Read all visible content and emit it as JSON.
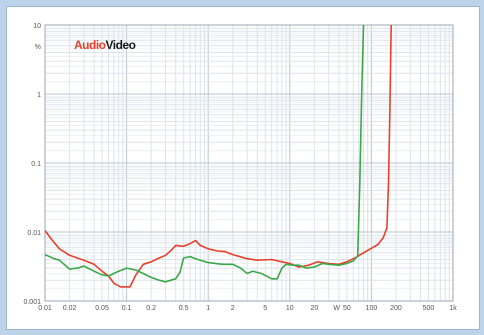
{
  "chart_data": {
    "type": "line",
    "x_scale": "log",
    "y_scale": "log",
    "xlim": [
      0.01,
      1000
    ],
    "ylim": [
      0.001,
      10
    ],
    "grid": true,
    "x_tick_labels": [
      {
        "value": 0.01,
        "label": "0.01"
      },
      {
        "value": 0.02,
        "label": "0.02"
      },
      {
        "value": 0.05,
        "label": "0.05"
      },
      {
        "value": 0.1,
        "label": "0.1"
      },
      {
        "value": 0.2,
        "label": "0.2"
      },
      {
        "value": 0.5,
        "label": "0.5"
      },
      {
        "value": 1,
        "label": "1"
      },
      {
        "value": 2,
        "label": "2"
      },
      {
        "value": 5,
        "label": "5"
      },
      {
        "value": 10,
        "label": "10"
      },
      {
        "value": 20,
        "label": "20"
      },
      {
        "value": 50,
        "label": "50"
      },
      {
        "value": 100,
        "label": "100"
      },
      {
        "value": 200,
        "label": "200"
      },
      {
        "value": 500,
        "label": "500"
      },
      {
        "value": 1000,
        "label": "1k"
      }
    ],
    "x_unit_label": {
      "value": 30,
      "label": "W"
    },
    "y_tick_labels": [
      {
        "value": 10,
        "label": "10"
      },
      {
        "value": 1,
        "label": "1"
      },
      {
        "value": 0.1,
        "label": "0.1"
      },
      {
        "value": 0.01,
        "label": "0.01"
      },
      {
        "value": 0.001,
        "label": "0.001"
      }
    ],
    "y_unit_label": {
      "value": 5,
      "label": "%"
    },
    "series": [
      {
        "color": "#e8402a",
        "points": [
          [
            0.01,
            0.0105
          ],
          [
            0.012,
            0.0078
          ],
          [
            0.015,
            0.0057
          ],
          [
            0.02,
            0.0046
          ],
          [
            0.03,
            0.0039
          ],
          [
            0.04,
            0.0034
          ],
          [
            0.05,
            0.0027
          ],
          [
            0.06,
            0.0023
          ],
          [
            0.07,
            0.0018
          ],
          [
            0.085,
            0.0016
          ],
          [
            0.11,
            0.0016
          ],
          [
            0.13,
            0.0024
          ],
          [
            0.16,
            0.0034
          ],
          [
            0.2,
            0.0037
          ],
          [
            0.25,
            0.0042
          ],
          [
            0.3,
            0.0046
          ],
          [
            0.35,
            0.0054
          ],
          [
            0.4,
            0.0064
          ],
          [
            0.5,
            0.0062
          ],
          [
            0.6,
            0.0068
          ],
          [
            0.7,
            0.0075
          ],
          [
            0.8,
            0.0064
          ],
          [
            1,
            0.0057
          ],
          [
            1.3,
            0.0053
          ],
          [
            1.6,
            0.0052
          ],
          [
            2,
            0.0047
          ],
          [
            3,
            0.0041
          ],
          [
            4,
            0.0039
          ],
          [
            6,
            0.004
          ],
          [
            8,
            0.0037
          ],
          [
            10,
            0.0035
          ],
          [
            13,
            0.0031
          ],
          [
            17,
            0.0033
          ],
          [
            22,
            0.0037
          ],
          [
            30,
            0.0035
          ],
          [
            40,
            0.0034
          ],
          [
            50,
            0.0037
          ],
          [
            65,
            0.0043
          ],
          [
            80,
            0.005
          ],
          [
            100,
            0.0058
          ],
          [
            120,
            0.0066
          ],
          [
            140,
            0.0083
          ],
          [
            155,
            0.0115
          ],
          [
            162,
            0.05
          ],
          [
            168,
            0.5
          ],
          [
            175,
            10
          ]
        ]
      },
      {
        "color": "#3aa84a",
        "points": [
          [
            0.01,
            0.0047
          ],
          [
            0.013,
            0.0041
          ],
          [
            0.015,
            0.0039
          ],
          [
            0.02,
            0.0029
          ],
          [
            0.025,
            0.003
          ],
          [
            0.03,
            0.0032
          ],
          [
            0.04,
            0.0027
          ],
          [
            0.05,
            0.0024
          ],
          [
            0.06,
            0.0023
          ],
          [
            0.08,
            0.0027
          ],
          [
            0.1,
            0.003
          ],
          [
            0.13,
            0.0028
          ],
          [
            0.16,
            0.0025
          ],
          [
            0.2,
            0.0022
          ],
          [
            0.25,
            0.002
          ],
          [
            0.3,
            0.0019
          ],
          [
            0.4,
            0.0021
          ],
          [
            0.45,
            0.0026
          ],
          [
            0.5,
            0.0042
          ],
          [
            0.6,
            0.0044
          ],
          [
            0.7,
            0.0041
          ],
          [
            0.8,
            0.0039
          ],
          [
            1,
            0.0036
          ],
          [
            1.5,
            0.0034
          ],
          [
            2,
            0.0034
          ],
          [
            2.5,
            0.003
          ],
          [
            3,
            0.0025
          ],
          [
            3.5,
            0.0027
          ],
          [
            4.5,
            0.0025
          ],
          [
            6,
            0.0021
          ],
          [
            7,
            0.0021
          ],
          [
            8,
            0.003
          ],
          [
            9,
            0.0034
          ],
          [
            11,
            0.0033
          ],
          [
            13,
            0.0033
          ],
          [
            16,
            0.003
          ],
          [
            20,
            0.0031
          ],
          [
            25,
            0.0035
          ],
          [
            30,
            0.0034
          ],
          [
            40,
            0.0033
          ],
          [
            50,
            0.0035
          ],
          [
            60,
            0.0038
          ],
          [
            68,
            0.0045
          ],
          [
            72,
            0.05
          ],
          [
            76,
            1
          ],
          [
            80,
            10
          ]
        ]
      }
    ],
    "watermark": {
      "part1": "Audio",
      "part2": "Video",
      "color1": "#e8402a",
      "color2": "#1a1a1a"
    },
    "colors": {
      "background": "#bcd3ea",
      "plot_border": "#9aa8b6",
      "grid_major": "#b9c6d3",
      "grid_minor": "#dde4eb"
    }
  }
}
